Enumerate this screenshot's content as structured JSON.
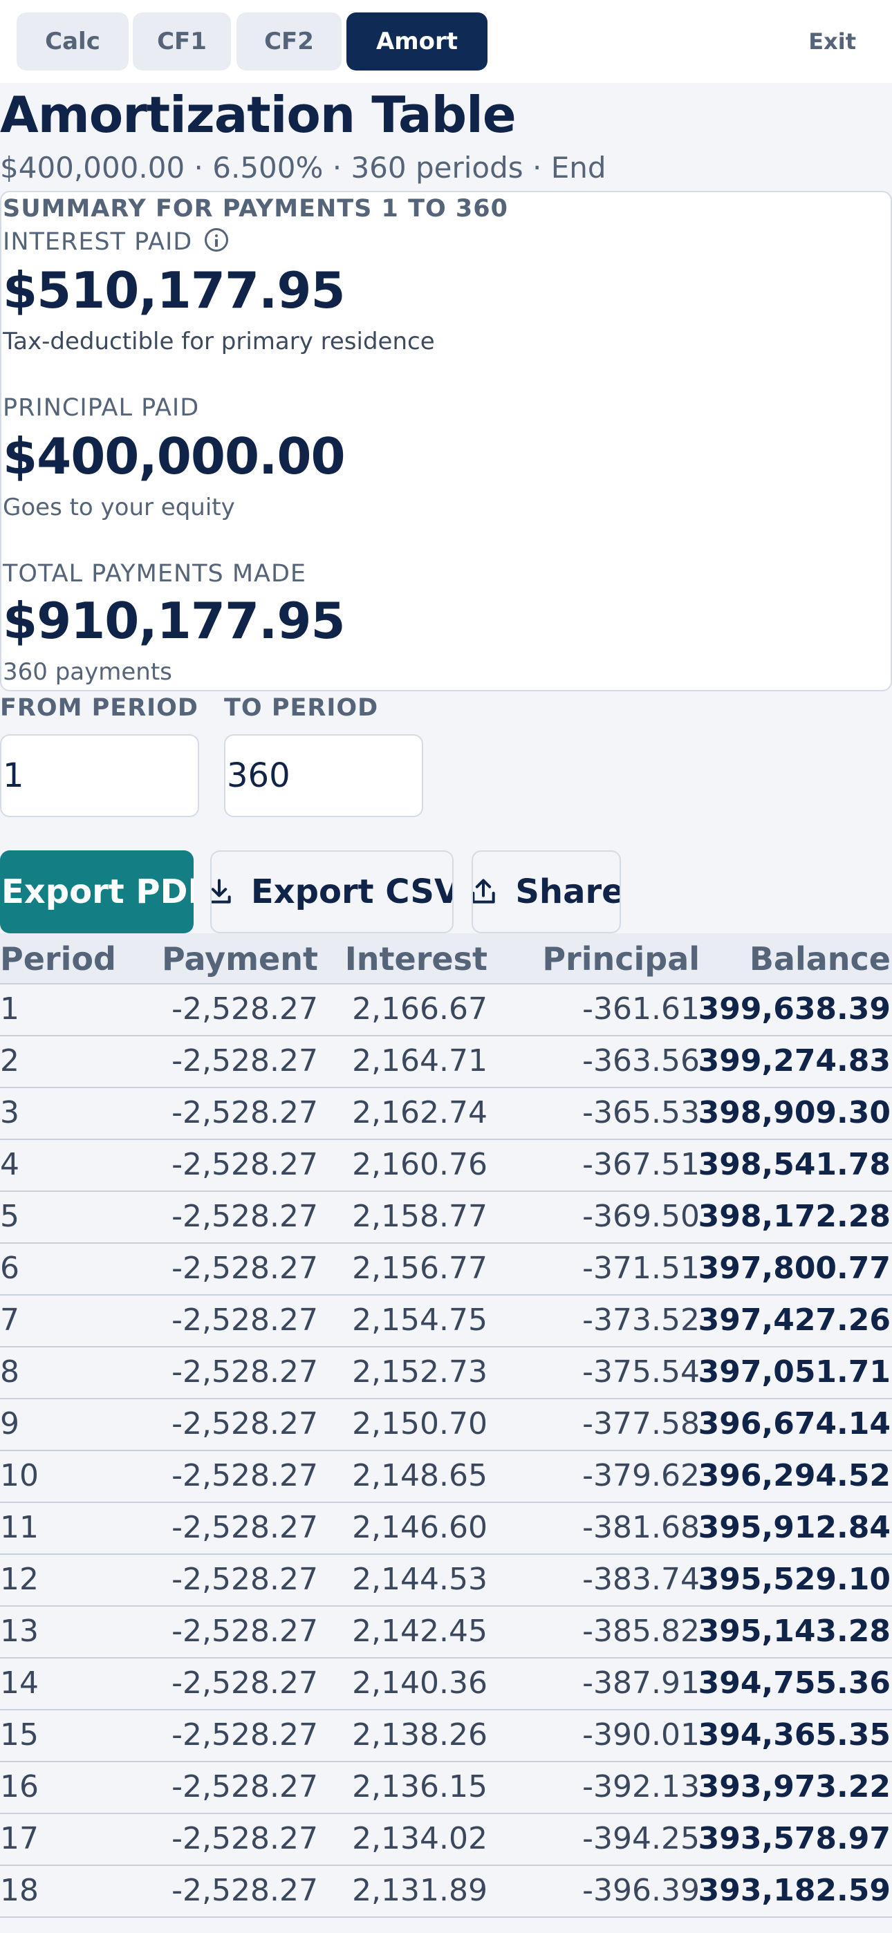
{
  "tabs": [
    {
      "label": "Calc",
      "active": false
    },
    {
      "label": "CF1",
      "active": false
    },
    {
      "label": "CF2",
      "active": false
    },
    {
      "label": "Amort",
      "active": true
    }
  ],
  "exit_label": "Exit",
  "header": {
    "title": "Amortization Table",
    "subtitle": "$400,000.00 · 6.500% · 360 periods · End"
  },
  "summary": {
    "heading": "SUMMARY FOR PAYMENTS 1 TO 360",
    "interest": {
      "label": "INTEREST PAID",
      "value": "$510,177.95",
      "note": "Tax-deductible for primary residence"
    },
    "principal": {
      "label": "PRINCIPAL PAID",
      "value": "$400,000.00",
      "note": "Goes to your equity"
    },
    "total": {
      "label": "TOTAL PAYMENTS MADE",
      "value": "$910,177.95",
      "note": "360 payments"
    }
  },
  "range": {
    "from_label": "FROM PERIOD",
    "from_value": "1",
    "to_label": "TO PERIOD",
    "to_value": "360"
  },
  "actions": {
    "export_pdf": "Export PDF",
    "export_csv": "Export CSV",
    "share": "Share"
  },
  "icons": {
    "info": "info-icon",
    "download": "download-icon",
    "share": "share-icon"
  },
  "table": {
    "columns": [
      "Period",
      "Payment",
      "Interest",
      "Principal",
      "Balance"
    ],
    "rows": [
      [
        "1",
        "-2,528.27",
        "2,166.67",
        "-361.61",
        "399,638.39"
      ],
      [
        "2",
        "-2,528.27",
        "2,164.71",
        "-363.56",
        "399,274.83"
      ],
      [
        "3",
        "-2,528.27",
        "2,162.74",
        "-365.53",
        "398,909.30"
      ],
      [
        "4",
        "-2,528.27",
        "2,160.76",
        "-367.51",
        "398,541.78"
      ],
      [
        "5",
        "-2,528.27",
        "2,158.77",
        "-369.50",
        "398,172.28"
      ],
      [
        "6",
        "-2,528.27",
        "2,156.77",
        "-371.51",
        "397,800.77"
      ],
      [
        "7",
        "-2,528.27",
        "2,154.75",
        "-373.52",
        "397,427.26"
      ],
      [
        "8",
        "-2,528.27",
        "2,152.73",
        "-375.54",
        "397,051.71"
      ],
      [
        "9",
        "-2,528.27",
        "2,150.70",
        "-377.58",
        "396,674.14"
      ],
      [
        "10",
        "-2,528.27",
        "2,148.65",
        "-379.62",
        "396,294.52"
      ],
      [
        "11",
        "-2,528.27",
        "2,146.60",
        "-381.68",
        "395,912.84"
      ],
      [
        "12",
        "-2,528.27",
        "2,144.53",
        "-383.74",
        "395,529.10"
      ],
      [
        "13",
        "-2,528.27",
        "2,142.45",
        "-385.82",
        "395,143.28"
      ],
      [
        "14",
        "-2,528.27",
        "2,140.36",
        "-387.91",
        "394,755.36"
      ],
      [
        "15",
        "-2,528.27",
        "2,138.26",
        "-390.01",
        "394,365.35"
      ],
      [
        "16",
        "-2,528.27",
        "2,136.15",
        "-392.13",
        "393,973.22"
      ],
      [
        "17",
        "-2,528.27",
        "2,134.02",
        "-394.25",
        "393,578.97"
      ],
      [
        "18",
        "-2,528.27",
        "2,131.89",
        "-396.39",
        "393,182.59"
      ]
    ]
  }
}
